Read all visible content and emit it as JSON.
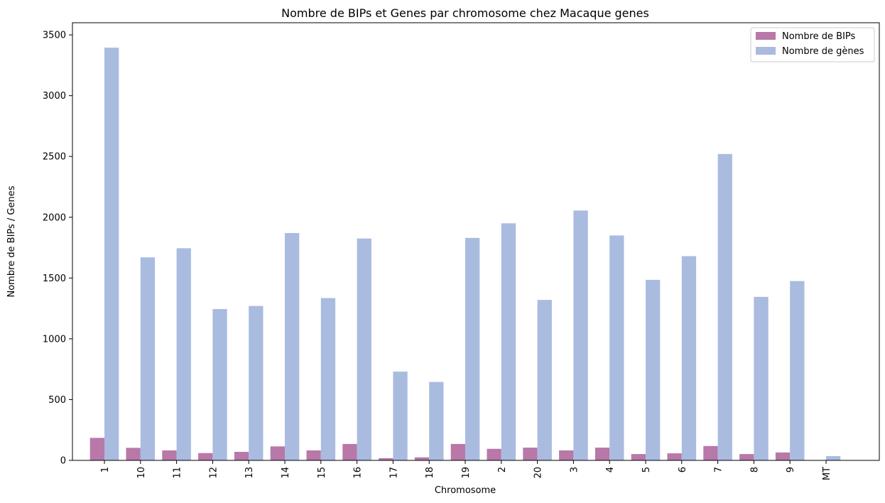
{
  "chart_data": {
    "type": "bar",
    "title": "Nombre de BIPs et Genes par chromosome chez Macaque genes",
    "xlabel": "Chromosome",
    "ylabel": "Nombre de BIPs / Genes",
    "ylim": [
      0,
      3600
    ],
    "yticks": [
      0,
      500,
      1000,
      1500,
      2000,
      2500,
      3000,
      3500
    ],
    "categories": [
      "1",
      "10",
      "11",
      "12",
      "13",
      "14",
      "15",
      "16",
      "17",
      "18",
      "19",
      "2",
      "20",
      "3",
      "4",
      "5",
      "6",
      "7",
      "8",
      "9",
      "MT"
    ],
    "series": [
      {
        "name": "Nombre de BIPs",
        "color": "#b878a8",
        "values": [
          185,
          103,
          82,
          60,
          70,
          115,
          82,
          135,
          18,
          25,
          135,
          95,
          105,
          82,
          105,
          52,
          58,
          118,
          52,
          65,
          3
        ]
      },
      {
        "name": "Nombre de gènes",
        "color": "#aabbe0",
        "values": [
          3395,
          1670,
          1745,
          1245,
          1270,
          1870,
          1335,
          1825,
          730,
          645,
          1830,
          1950,
          1320,
          2055,
          1850,
          1485,
          1680,
          2520,
          1345,
          1475,
          35
        ]
      }
    ],
    "legend_position": "top-right",
    "grid": false
  }
}
